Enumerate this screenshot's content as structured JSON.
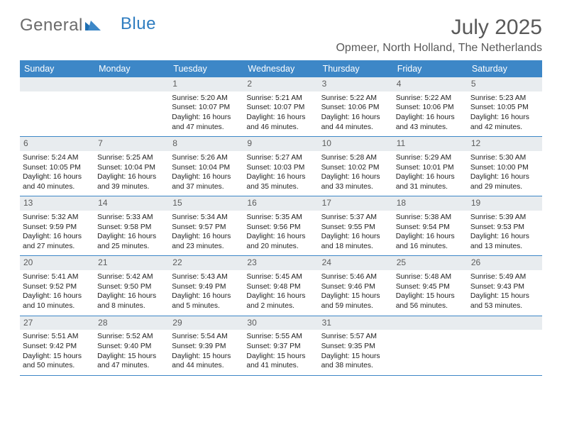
{
  "brand": {
    "part1": "General",
    "part2": "Blue"
  },
  "title": "July 2025",
  "location": "Opmeer, North Holland, The Netherlands",
  "colors": {
    "header_bg": "#3d87c7",
    "header_text": "#ffffff",
    "daynum_bg": "#e8ecef",
    "daynum_text": "#5c5c5c",
    "brand_gray": "#6b6b6b",
    "brand_blue": "#2f7dc0",
    "title_color": "#595959",
    "border_color": "#3d87c7",
    "body_text": "#222222"
  },
  "typography": {
    "month_title_pt": 30,
    "location_pt": 16,
    "dayheader_pt": 12.5,
    "daynum_pt": 12,
    "body_pt": 10.3
  },
  "day_headers": [
    "Sunday",
    "Monday",
    "Tuesday",
    "Wednesday",
    "Thursday",
    "Friday",
    "Saturday"
  ],
  "weeks": [
    [
      null,
      null,
      {
        "n": "1",
        "sunrise": "Sunrise: 5:20 AM",
        "sunset": "Sunset: 10:07 PM",
        "daylight": "Daylight: 16 hours and 47 minutes."
      },
      {
        "n": "2",
        "sunrise": "Sunrise: 5:21 AM",
        "sunset": "Sunset: 10:07 PM",
        "daylight": "Daylight: 16 hours and 46 minutes."
      },
      {
        "n": "3",
        "sunrise": "Sunrise: 5:22 AM",
        "sunset": "Sunset: 10:06 PM",
        "daylight": "Daylight: 16 hours and 44 minutes."
      },
      {
        "n": "4",
        "sunrise": "Sunrise: 5:22 AM",
        "sunset": "Sunset: 10:06 PM",
        "daylight": "Daylight: 16 hours and 43 minutes."
      },
      {
        "n": "5",
        "sunrise": "Sunrise: 5:23 AM",
        "sunset": "Sunset: 10:05 PM",
        "daylight": "Daylight: 16 hours and 42 minutes."
      }
    ],
    [
      {
        "n": "6",
        "sunrise": "Sunrise: 5:24 AM",
        "sunset": "Sunset: 10:05 PM",
        "daylight": "Daylight: 16 hours and 40 minutes."
      },
      {
        "n": "7",
        "sunrise": "Sunrise: 5:25 AM",
        "sunset": "Sunset: 10:04 PM",
        "daylight": "Daylight: 16 hours and 39 minutes."
      },
      {
        "n": "8",
        "sunrise": "Sunrise: 5:26 AM",
        "sunset": "Sunset: 10:04 PM",
        "daylight": "Daylight: 16 hours and 37 minutes."
      },
      {
        "n": "9",
        "sunrise": "Sunrise: 5:27 AM",
        "sunset": "Sunset: 10:03 PM",
        "daylight": "Daylight: 16 hours and 35 minutes."
      },
      {
        "n": "10",
        "sunrise": "Sunrise: 5:28 AM",
        "sunset": "Sunset: 10:02 PM",
        "daylight": "Daylight: 16 hours and 33 minutes."
      },
      {
        "n": "11",
        "sunrise": "Sunrise: 5:29 AM",
        "sunset": "Sunset: 10:01 PM",
        "daylight": "Daylight: 16 hours and 31 minutes."
      },
      {
        "n": "12",
        "sunrise": "Sunrise: 5:30 AM",
        "sunset": "Sunset: 10:00 PM",
        "daylight": "Daylight: 16 hours and 29 minutes."
      }
    ],
    [
      {
        "n": "13",
        "sunrise": "Sunrise: 5:32 AM",
        "sunset": "Sunset: 9:59 PM",
        "daylight": "Daylight: 16 hours and 27 minutes."
      },
      {
        "n": "14",
        "sunrise": "Sunrise: 5:33 AM",
        "sunset": "Sunset: 9:58 PM",
        "daylight": "Daylight: 16 hours and 25 minutes."
      },
      {
        "n": "15",
        "sunrise": "Sunrise: 5:34 AM",
        "sunset": "Sunset: 9:57 PM",
        "daylight": "Daylight: 16 hours and 23 minutes."
      },
      {
        "n": "16",
        "sunrise": "Sunrise: 5:35 AM",
        "sunset": "Sunset: 9:56 PM",
        "daylight": "Daylight: 16 hours and 20 minutes."
      },
      {
        "n": "17",
        "sunrise": "Sunrise: 5:37 AM",
        "sunset": "Sunset: 9:55 PM",
        "daylight": "Daylight: 16 hours and 18 minutes."
      },
      {
        "n": "18",
        "sunrise": "Sunrise: 5:38 AM",
        "sunset": "Sunset: 9:54 PM",
        "daylight": "Daylight: 16 hours and 16 minutes."
      },
      {
        "n": "19",
        "sunrise": "Sunrise: 5:39 AM",
        "sunset": "Sunset: 9:53 PM",
        "daylight": "Daylight: 16 hours and 13 minutes."
      }
    ],
    [
      {
        "n": "20",
        "sunrise": "Sunrise: 5:41 AM",
        "sunset": "Sunset: 9:52 PM",
        "daylight": "Daylight: 16 hours and 10 minutes."
      },
      {
        "n": "21",
        "sunrise": "Sunrise: 5:42 AM",
        "sunset": "Sunset: 9:50 PM",
        "daylight": "Daylight: 16 hours and 8 minutes."
      },
      {
        "n": "22",
        "sunrise": "Sunrise: 5:43 AM",
        "sunset": "Sunset: 9:49 PM",
        "daylight": "Daylight: 16 hours and 5 minutes."
      },
      {
        "n": "23",
        "sunrise": "Sunrise: 5:45 AM",
        "sunset": "Sunset: 9:48 PM",
        "daylight": "Daylight: 16 hours and 2 minutes."
      },
      {
        "n": "24",
        "sunrise": "Sunrise: 5:46 AM",
        "sunset": "Sunset: 9:46 PM",
        "daylight": "Daylight: 15 hours and 59 minutes."
      },
      {
        "n": "25",
        "sunrise": "Sunrise: 5:48 AM",
        "sunset": "Sunset: 9:45 PM",
        "daylight": "Daylight: 15 hours and 56 minutes."
      },
      {
        "n": "26",
        "sunrise": "Sunrise: 5:49 AM",
        "sunset": "Sunset: 9:43 PM",
        "daylight": "Daylight: 15 hours and 53 minutes."
      }
    ],
    [
      {
        "n": "27",
        "sunrise": "Sunrise: 5:51 AM",
        "sunset": "Sunset: 9:42 PM",
        "daylight": "Daylight: 15 hours and 50 minutes."
      },
      {
        "n": "28",
        "sunrise": "Sunrise: 5:52 AM",
        "sunset": "Sunset: 9:40 PM",
        "daylight": "Daylight: 15 hours and 47 minutes."
      },
      {
        "n": "29",
        "sunrise": "Sunrise: 5:54 AM",
        "sunset": "Sunset: 9:39 PM",
        "daylight": "Daylight: 15 hours and 44 minutes."
      },
      {
        "n": "30",
        "sunrise": "Sunrise: 5:55 AM",
        "sunset": "Sunset: 9:37 PM",
        "daylight": "Daylight: 15 hours and 41 minutes."
      },
      {
        "n": "31",
        "sunrise": "Sunrise: 5:57 AM",
        "sunset": "Sunset: 9:35 PM",
        "daylight": "Daylight: 15 hours and 38 minutes."
      },
      null,
      null
    ]
  ]
}
